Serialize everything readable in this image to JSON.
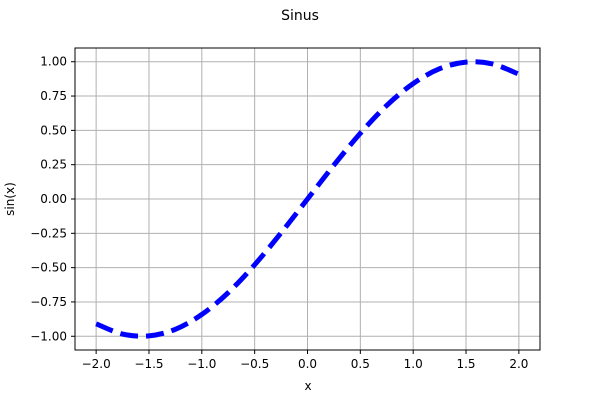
{
  "chart_data": {
    "type": "line",
    "title": "Sinus",
    "xlabel": "x",
    "ylabel": "sin(x)",
    "xlim": [
      -2.2,
      2.2
    ],
    "ylim": [
      -1.1,
      1.1
    ],
    "xticks": [
      -2.0,
      -1.5,
      -1.0,
      -0.5,
      0.0,
      0.5,
      1.0,
      1.5,
      2.0
    ],
    "xtick_labels": [
      "−2.0",
      "−1.5",
      "−1.0",
      "−0.5",
      "0.0",
      "0.5",
      "1.0",
      "1.5",
      "2.0"
    ],
    "yticks": [
      -1.0,
      -0.75,
      -0.5,
      -0.25,
      0.0,
      0.25,
      0.5,
      0.75,
      1.0
    ],
    "ytick_labels": [
      "−1.00",
      "−0.75",
      "−0.50",
      "−0.25",
      "0.00",
      "0.25",
      "0.50",
      "0.75",
      "1.00"
    ],
    "grid": true,
    "series": [
      {
        "color": "#0000ff",
        "line_style": "dashed",
        "x": [
          -2.0,
          -1.75,
          -1.5,
          -1.25,
          -1.0,
          -0.75,
          -0.5,
          -0.25,
          0.0,
          0.25,
          0.5,
          0.75,
          1.0,
          1.25,
          1.5,
          1.75,
          2.0
        ],
        "y": [
          -0.909,
          -0.984,
          -0.997,
          -0.949,
          -0.841,
          -0.682,
          -0.479,
          -0.247,
          0.0,
          0.247,
          0.479,
          0.682,
          0.841,
          0.949,
          0.997,
          0.984,
          0.909
        ]
      }
    ]
  }
}
